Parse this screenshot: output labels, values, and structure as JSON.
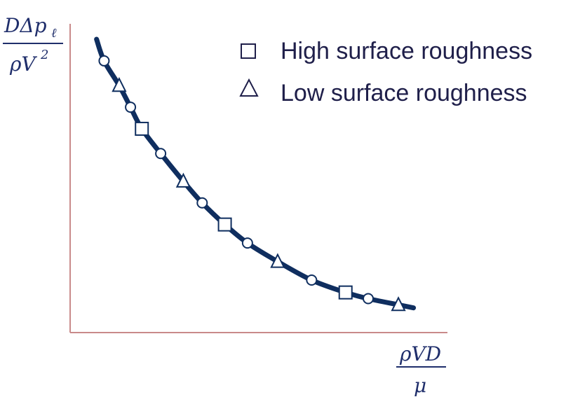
{
  "chart_data": {
    "type": "scatter",
    "title": "",
    "x_axis_label": {
      "numerator": "ρVD",
      "denominator": "μ"
    },
    "y_axis_label": {
      "numerator_main": "DΔp",
      "numerator_subscript": "ℓ",
      "denominator_main": "ρV",
      "denominator_superscript": "2"
    },
    "grid": false,
    "legend_position": "top-right",
    "series": [
      {
        "name": "",
        "marker": "circle",
        "points": [
          [
            0.09,
            0.88
          ],
          [
            0.16,
            0.73
          ],
          [
            0.24,
            0.58
          ],
          [
            0.35,
            0.42
          ],
          [
            0.47,
            0.29
          ],
          [
            0.64,
            0.17
          ],
          [
            0.79,
            0.11
          ]
        ]
      },
      {
        "name": "High surface roughness",
        "marker": "square",
        "points": [
          [
            0.19,
            0.66
          ],
          [
            0.41,
            0.35
          ],
          [
            0.73,
            0.13
          ]
        ]
      },
      {
        "name": "Low surface roughness",
        "marker": "triangle",
        "points": [
          [
            0.13,
            0.8
          ],
          [
            0.3,
            0.49
          ],
          [
            0.55,
            0.23
          ],
          [
            0.87,
            0.09
          ]
        ]
      }
    ],
    "curve": [
      [
        0.07,
        0.95
      ],
      [
        0.09,
        0.88
      ],
      [
        0.13,
        0.8
      ],
      [
        0.16,
        0.73
      ],
      [
        0.19,
        0.66
      ],
      [
        0.24,
        0.58
      ],
      [
        0.3,
        0.49
      ],
      [
        0.35,
        0.42
      ],
      [
        0.41,
        0.35
      ],
      [
        0.47,
        0.29
      ],
      [
        0.55,
        0.23
      ],
      [
        0.64,
        0.17
      ],
      [
        0.73,
        0.13
      ],
      [
        0.79,
        0.11
      ],
      [
        0.87,
        0.09
      ],
      [
        0.91,
        0.08
      ]
    ]
  },
  "colors": {
    "curve": "#0f2e5f",
    "axis": "#c98a8a",
    "legend_text": "#1f1f4a",
    "label_text": "#1f2e6b"
  }
}
